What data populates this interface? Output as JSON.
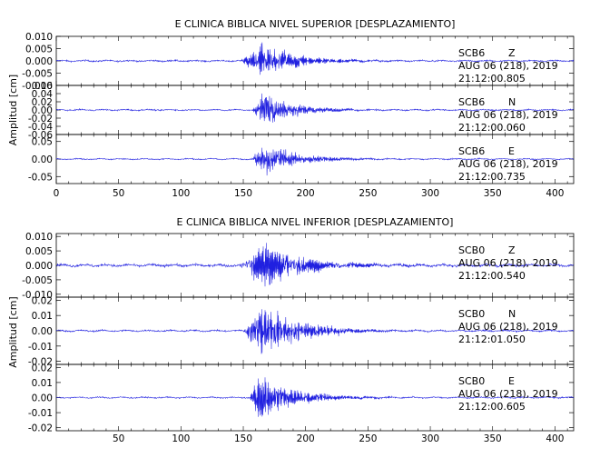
{
  "chart_data": [
    {
      "type": "line",
      "title": "E CLINICA BIBLICA NIVEL SUPERIOR [DESPLAZAMIENTO]",
      "ylabel": "Amplitud [cm]",
      "xlim": [
        0,
        415
      ],
      "x_ticks": [
        "0",
        "50",
        "100",
        "150",
        "200",
        "250",
        "300",
        "350",
        "400"
      ],
      "series_color": "#2020e0",
      "channels": [
        {
          "station": "SCB6",
          "component": "Z",
          "date": "AUG 06 (218), 2019",
          "time": "21:12:00.805",
          "ylim": [
            -0.01,
            0.01
          ],
          "y_ticks": [
            "0.010",
            "0.005",
            "0.000",
            "-0.005",
            "-0.010"
          ],
          "y_tick_values": [
            0.01,
            0.005,
            0.0,
            -0.005,
            -0.01
          ],
          "signal": {
            "noise": 0.0003,
            "onset": 147,
            "peak_time": 165,
            "peak": 0.0075,
            "decay": 28,
            "freq": 1.6
          }
        },
        {
          "station": "SCB6",
          "component": "N",
          "date": "AUG 06 (218), 2019",
          "time": "21:12:00.060",
          "ylim": [
            -0.06,
            0.06
          ],
          "y_ticks": [
            "0.06",
            "0.04",
            "0.02",
            "0.00",
            "-0.02",
            "-0.04",
            "-0.06"
          ],
          "y_tick_values": [
            0.06,
            0.04,
            0.02,
            0.0,
            -0.02,
            -0.04,
            -0.06
          ],
          "signal": {
            "noise": 0.0015,
            "onset": 157,
            "peak_time": 166,
            "peak": 0.04,
            "decay": 26,
            "freq": 1.3
          }
        },
        {
          "station": "SCB6",
          "component": "E",
          "date": "AUG 06 (218), 2019",
          "time": "21:12:00.735",
          "ylim": [
            -0.07,
            0.07
          ],
          "y_ticks": [
            "0.05",
            "0.00",
            "-0.05"
          ],
          "y_tick_values": [
            0.05,
            0.0,
            -0.05
          ],
          "signal": {
            "noise": 0.0015,
            "onset": 157,
            "peak_time": 166,
            "peak": 0.05,
            "decay": 26,
            "freq": 1.3
          }
        }
      ]
    },
    {
      "type": "line",
      "title": "E CLINICA BIBLICA NIVEL INFERIOR [DESPLAZAMIENTO]",
      "ylabel": "Amplitud [cm]",
      "xlim": [
        0,
        415
      ],
      "x_ticks": [
        "50",
        "100",
        "150",
        "200",
        "250",
        "300",
        "350",
        "400"
      ],
      "series_color": "#2020e0",
      "channels": [
        {
          "station": "SCB0",
          "component": "Z",
          "date": "AUG 06 (218), 2019",
          "time": "21:12:00.540",
          "ylim": [
            -0.011,
            0.011
          ],
          "y_ticks": [
            "0.010",
            "0.005",
            "0.000",
            "-0.005",
            "-0.010"
          ],
          "y_tick_values": [
            0.01,
            0.005,
            0.0,
            -0.005,
            -0.01
          ],
          "signal": {
            "noise": 0.0004,
            "onset": 145,
            "peak_time": 167,
            "peak": 0.0085,
            "decay": 32,
            "freq": 1.7
          }
        },
        {
          "station": "SCB0",
          "component": "N",
          "date": "AUG 06 (218), 2019",
          "time": "21:12:01.050",
          "ylim": [
            -0.022,
            0.022
          ],
          "y_ticks": [
            "0.02",
            "0.01",
            "0.00",
            "-0.01",
            "-0.02"
          ],
          "y_tick_values": [
            0.02,
            0.01,
            0.0,
            -0.01,
            -0.02
          ],
          "signal": {
            "noise": 0.0005,
            "onset": 150,
            "peak_time": 166,
            "peak": 0.017,
            "decay": 30,
            "freq": 1.5
          }
        },
        {
          "station": "SCB0",
          "component": "E",
          "date": "AUG 06 (218), 2019",
          "time": "21:12:00.605",
          "ylim": [
            -0.022,
            0.022
          ],
          "y_ticks": [
            "0.02",
            "0.01",
            "0.00",
            "-0.01",
            "-0.02"
          ],
          "y_tick_values": [
            0.02,
            0.01,
            0.0,
            -0.01,
            -0.02
          ],
          "signal": {
            "noise": 0.0004,
            "onset": 155,
            "peak_time": 162,
            "peak": 0.017,
            "decay": 28,
            "freq": 1.5
          }
        }
      ]
    }
  ]
}
